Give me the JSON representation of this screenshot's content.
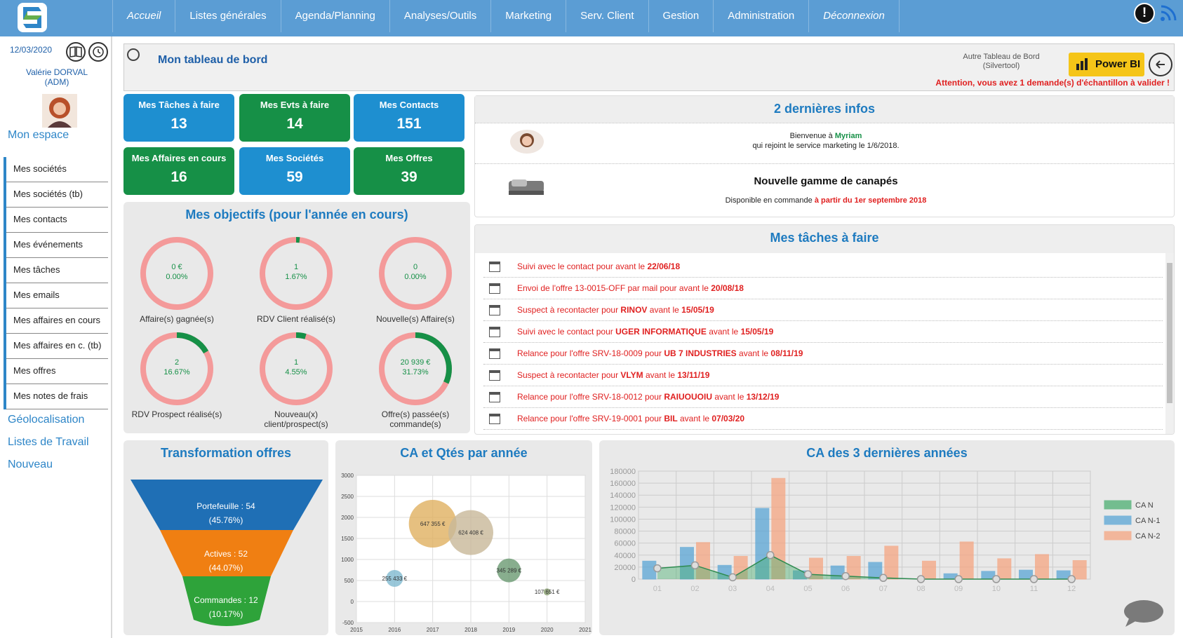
{
  "nav": {
    "items": [
      "Accueil",
      "Listes générales",
      "Agenda/Planning",
      "Analyses/Outils",
      "Marketing",
      "Serv. Client",
      "Gestion",
      "Administration",
      "Déconnexion"
    ]
  },
  "sidebar": {
    "date": "12/03/2020",
    "user_name": "Valérie DORVAL",
    "user_role": "(ADM)",
    "section_mon_espace": "Mon espace",
    "items": [
      "Mes sociétés",
      "Mes sociétés (tb)",
      "Mes contacts",
      "Mes événements",
      "Mes tâches",
      "Mes emails",
      "Mes affaires en cours",
      "Mes affaires en c. (tb)",
      "Mes offres",
      "Mes notes de frais"
    ],
    "section_geo": "Géolocalisation",
    "section_listes": "Listes de Travail",
    "section_nouveau": "Nouveau"
  },
  "header": {
    "title": "Mon tableau de bord",
    "autre_line1": "Autre Tableau de Bord",
    "autre_line2": "(Silvertool)",
    "powerbi_label": "Power BI",
    "warning": "Attention, vous avez 1 demande(s) d'échantillon à valider !"
  },
  "tiles": [
    {
      "label": "Mes Tâches à faire",
      "value": "13",
      "color": "#1e8fd0"
    },
    {
      "label": "Mes Evts à faire",
      "value": "14",
      "color": "#169047"
    },
    {
      "label": "Mes Contacts",
      "value": "151",
      "color": "#1e8fd0"
    },
    {
      "label": "Mes Affaires en cours",
      "value": "16",
      "color": "#169047"
    },
    {
      "label": "Mes Sociétés",
      "value": "59",
      "color": "#1e8fd0"
    },
    {
      "label": "Mes Offres",
      "value": "39",
      "color": "#169047"
    }
  ],
  "objectifs": {
    "title": "Mes objectifs (pour l'année en cours)",
    "items": [
      {
        "value": "0 €",
        "pct": "0.00%",
        "pct_num": 0,
        "label": "Affaire(s) gagnée(s)"
      },
      {
        "value": "1",
        "pct": "1.67%",
        "pct_num": 1.67,
        "label": "RDV Client réalisé(s)"
      },
      {
        "value": "0",
        "pct": "0.00%",
        "pct_num": 0,
        "label": "Nouvelle(s) Affaire(s)"
      },
      {
        "value": "2",
        "pct": "16.67%",
        "pct_num": 16.67,
        "label": "RDV Prospect réalisé(s)"
      },
      {
        "value": "1",
        "pct": "4.55%",
        "pct_num": 4.55,
        "label": "Nouveau(x) client/prospect(s)"
      },
      {
        "value": "20 939 €",
        "pct": "31.73%",
        "pct_num": 31.73,
        "label": "Offre(s) passée(s) commande(s)"
      }
    ]
  },
  "infos": {
    "title": "2 dernières infos",
    "item1_prefix": "Bienvenue à",
    "item1_name": "Myriam",
    "item1_line2": "qui rejoint le service marketing le 1/6/2018.",
    "item2_title": "Nouvelle gamme de canapés",
    "item2_prefix": "Disponible en commande",
    "item2_date": "à partir du 1er septembre 2018"
  },
  "taches": {
    "title": "Mes tâches à faire",
    "rows": [
      {
        "pre": "Suivi avec le contact pour avant le ",
        "bold": "",
        "mid": "",
        "date": "22/06/18"
      },
      {
        "pre": "Envoi de l'offre 13-0015-OFF par mail pour avant le ",
        "bold": "",
        "mid": "",
        "date": "20/08/18"
      },
      {
        "pre": "Suspect à recontacter pour ",
        "bold": "RINOV",
        "mid": " avant le ",
        "date": "15/05/19"
      },
      {
        "pre": "Suivi avec le contact pour ",
        "bold": "UGER INFORMATIQUE",
        "mid": " avant le ",
        "date": "15/05/19"
      },
      {
        "pre": "Relance pour l'offre SRV-18-0009 pour ",
        "bold": "UB 7 INDUSTRIES",
        "mid": " avant le ",
        "date": "08/11/19"
      },
      {
        "pre": "Suspect à recontacter pour ",
        "bold": "VLYM",
        "mid": " avant le ",
        "date": "13/11/19"
      },
      {
        "pre": "Relance pour l'offre SRV-18-0012 pour ",
        "bold": "RAIUOUOIU",
        "mid": " avant le ",
        "date": "13/12/19"
      },
      {
        "pre": "Relance pour l'offre SRV-19-0001 pour ",
        "bold": "BIL",
        "mid": " avant le ",
        "date": "07/03/20"
      }
    ]
  },
  "funnel": {
    "title": "Transformation offres",
    "stages": [
      {
        "label": "Portefeuille : 54",
        "pct": "(45.76%)",
        "color": "#1f6fb5"
      },
      {
        "label": "Actives : 52",
        "pct": "(44.07%)",
        "color": "#f07f12"
      },
      {
        "label": "Commandes : 12",
        "pct": "(10.17%)",
        "color": "#2ea33a"
      }
    ]
  },
  "chart_data": [
    {
      "type": "scatter",
      "title": "CA et Qtés par année",
      "x_ticks": [
        "2015",
        "2016",
        "2017",
        "2018",
        "2019",
        "2020",
        "2021"
      ],
      "y_ticks": [
        "3000",
        "2500",
        "2000",
        "1500",
        "1000",
        "500",
        "0",
        "-500"
      ],
      "ylim": [
        -500,
        3000
      ],
      "xlim": [
        2015,
        2021
      ],
      "points": [
        {
          "x": 2016,
          "y": 550,
          "r": 12,
          "label": "255 433 €",
          "color": "#7fb9d0"
        },
        {
          "x": 2017,
          "y": 1850,
          "r": 34,
          "label": "647 355 €",
          "color": "#e0b060"
        },
        {
          "x": 2018,
          "y": 1640,
          "r": 32,
          "label": "624 408 €",
          "color": "#c8b898"
        },
        {
          "x": 2019,
          "y": 740,
          "r": 17,
          "label": "345 289 €",
          "color": "#6a9a72"
        },
        {
          "x": 2020,
          "y": 230,
          "r": 5,
          "label": "107 651 €",
          "color": "#8aa070"
        }
      ]
    },
    {
      "type": "bar",
      "title": "CA des 3 dernières années",
      "categories": [
        "01",
        "02",
        "03",
        "04",
        "05",
        "06",
        "07",
        "08",
        "09",
        "10",
        "11",
        "12"
      ],
      "y_ticks": [
        "180000",
        "160000",
        "140000",
        "120000",
        "100000",
        "80000",
        "60000",
        "40000",
        "20000",
        "0"
      ],
      "ylim": [
        0,
        180000
      ],
      "series": [
        {
          "name": "CA N",
          "type": "area",
          "color": "#4caf72",
          "values": [
            18000,
            23000,
            3000,
            40000,
            8000,
            5000,
            2000,
            0,
            0,
            0,
            0,
            0
          ]
        },
        {
          "name": "CA N-1",
          "type": "bar",
          "color": "#5aa5d5",
          "values": [
            30000,
            53000,
            23000,
            118000,
            14000,
            22000,
            28000,
            0,
            9000,
            13000,
            15000,
            14000
          ]
        },
        {
          "name": "CA N-2",
          "type": "bar",
          "color": "#f5a582",
          "values": [
            0,
            61000,
            38000,
            168000,
            35000,
            38000,
            55000,
            30000,
            62000,
            34000,
            41000,
            31000
          ]
        }
      ]
    }
  ]
}
